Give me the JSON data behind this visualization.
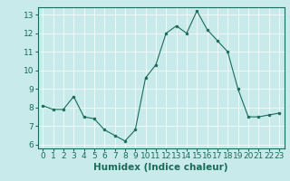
{
  "x": [
    0,
    1,
    2,
    3,
    4,
    5,
    6,
    7,
    8,
    9,
    10,
    11,
    12,
    13,
    14,
    15,
    16,
    17,
    18,
    19,
    20,
    21,
    22,
    23
  ],
  "y": [
    8.1,
    7.9,
    7.9,
    8.6,
    7.5,
    7.4,
    6.8,
    6.5,
    6.2,
    6.8,
    9.6,
    10.3,
    12.0,
    12.4,
    12.0,
    13.2,
    12.2,
    11.6,
    11.0,
    9.0,
    7.5,
    7.5,
    7.6,
    7.7
  ],
  "line_color": "#1a6b5a",
  "marker_color": "#1a6b5a",
  "bg_color": "#c8eaea",
  "grid_major_color": "#aacccc",
  "grid_minor_color": "#ffffff",
  "xlabel": "Humidex (Indice chaleur)",
  "ylim": [
    5.8,
    13.4
  ],
  "xlim": [
    -0.5,
    23.5
  ],
  "yticks": [
    6,
    7,
    8,
    9,
    10,
    11,
    12,
    13
  ],
  "xticks": [
    0,
    1,
    2,
    3,
    4,
    5,
    6,
    7,
    8,
    9,
    10,
    11,
    12,
    13,
    14,
    15,
    16,
    17,
    18,
    19,
    20,
    21,
    22,
    23
  ],
  "xlabel_fontsize": 7.5,
  "tick_fontsize": 6.5
}
